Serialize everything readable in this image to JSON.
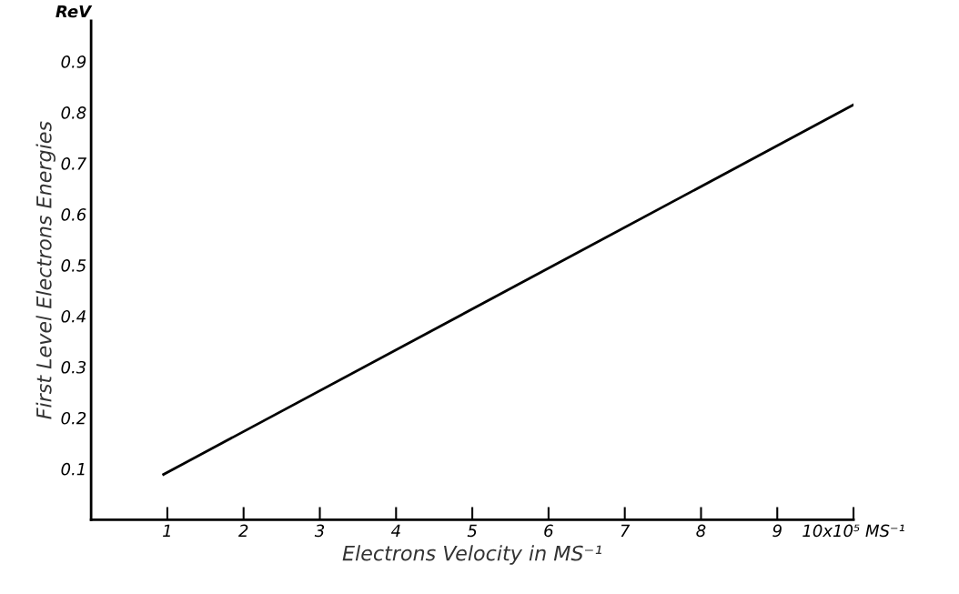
{
  "chart_data": {
    "type": "line",
    "xlabel": "Electrons Velocity in MS⁻¹",
    "ylabel": "First Level Electrons Energies",
    "annotations": [
      "ReV"
    ],
    "x": [
      0.95,
      10
    ],
    "series": [
      {
        "color": "#000000",
        "values": [
          0.089,
          0.815
        ]
      }
    ],
    "xlim": [
      0,
      10
    ],
    "xticks": [
      1,
      2,
      3,
      4,
      5,
      6,
      7,
      8,
      9,
      {
        "value": 10,
        "label": "10x10⁵ MS⁻¹"
      }
    ],
    "ylim": [
      0,
      0.98
    ],
    "yticks": [
      0.1,
      0.2,
      0.3,
      0.4,
      0.5,
      0.6,
      0.7,
      0.8,
      0.9
    ],
    "grid": false,
    "legend": false,
    "marker": "none",
    "line_style": "solid"
  }
}
